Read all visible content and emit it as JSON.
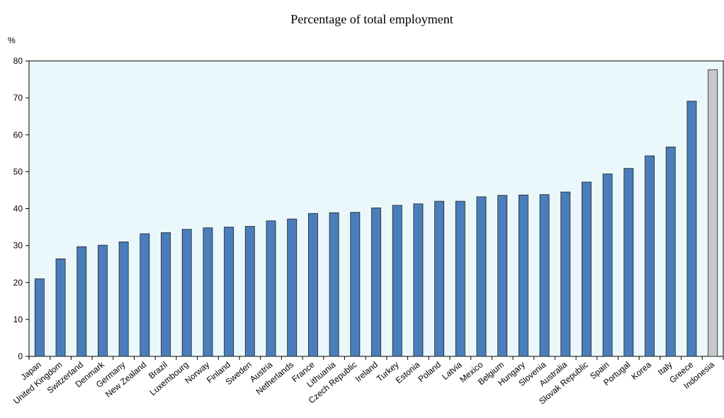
{
  "chart_data": {
    "type": "bar",
    "title": "Percentage of total employment",
    "ylabel": "%",
    "xlabel": "",
    "ylim": [
      0,
      80
    ],
    "yticks": [
      0,
      10,
      20,
      30,
      40,
      50,
      60,
      70,
      80
    ],
    "grid": false,
    "categories": [
      "Japan",
      "United Kingdom",
      "Switzerland",
      "Denmark",
      "Germany",
      "New Zealand",
      "Brazil",
      "Luxembourg",
      "Norway",
      "Finland",
      "Sweden",
      "Austria",
      "Netherlands",
      "France",
      "Lithuania",
      "Czech Republic",
      "Ireland",
      "Turkey",
      "Estonia",
      "Poland",
      "Latvia",
      "Mexico",
      "Belgium",
      "Hungary",
      "Slovenia",
      "Australia",
      "Slovak Republic",
      "Spain",
      "Portugal",
      "Korea",
      "Italy",
      "Greece",
      "Indonesia"
    ],
    "values": [
      21.0,
      26.4,
      29.7,
      30.1,
      31.0,
      33.2,
      33.5,
      34.4,
      34.8,
      35.0,
      35.2,
      36.7,
      37.2,
      38.7,
      38.9,
      39.0,
      40.2,
      40.9,
      41.3,
      42.0,
      42.0,
      43.2,
      43.6,
      43.7,
      43.8,
      44.5,
      47.2,
      49.4,
      50.9,
      54.3,
      56.7,
      69.1,
      77.6
    ],
    "highlight": [
      "Indonesia"
    ],
    "colors": {
      "bar": "#4a7ebb",
      "bar_stroke": "#1f1f1f",
      "highlight_bar": "#c8c8c8",
      "plot_background": "#eaf8fc",
      "axis": "#000000"
    }
  }
}
